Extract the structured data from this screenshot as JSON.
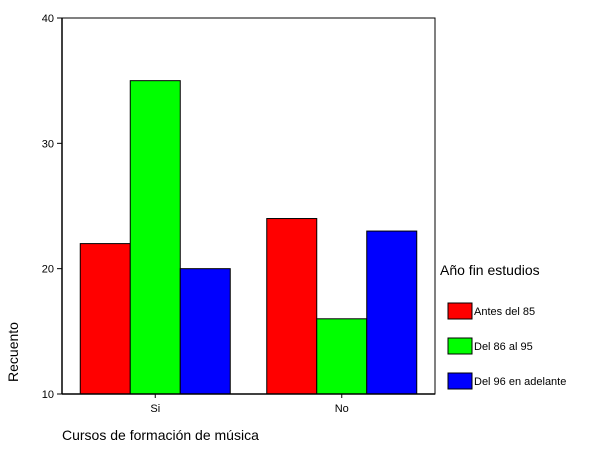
{
  "chart_data": {
    "type": "bar",
    "categories": [
      "Si",
      "No"
    ],
    "series": [
      {
        "name": "Antes del 85",
        "values": [
          22,
          24
        ],
        "color": "#ff0000"
      },
      {
        "name": "Del 86 al 95",
        "values": [
          35,
          16
        ],
        "color": "#00ff00"
      },
      {
        "name": "Del 96 en adelante",
        "values": [
          20,
          23
        ],
        "color": "#0000ff"
      }
    ],
    "title": "",
    "xlabel": "Cursos de formación de música",
    "ylabel": "Recuento",
    "ylim": [
      10,
      40
    ],
    "yticks": [
      "10",
      "20",
      "30",
      "40"
    ],
    "legend": {
      "title": "Año fin estudios",
      "placement": "right"
    },
    "grid": false
  }
}
